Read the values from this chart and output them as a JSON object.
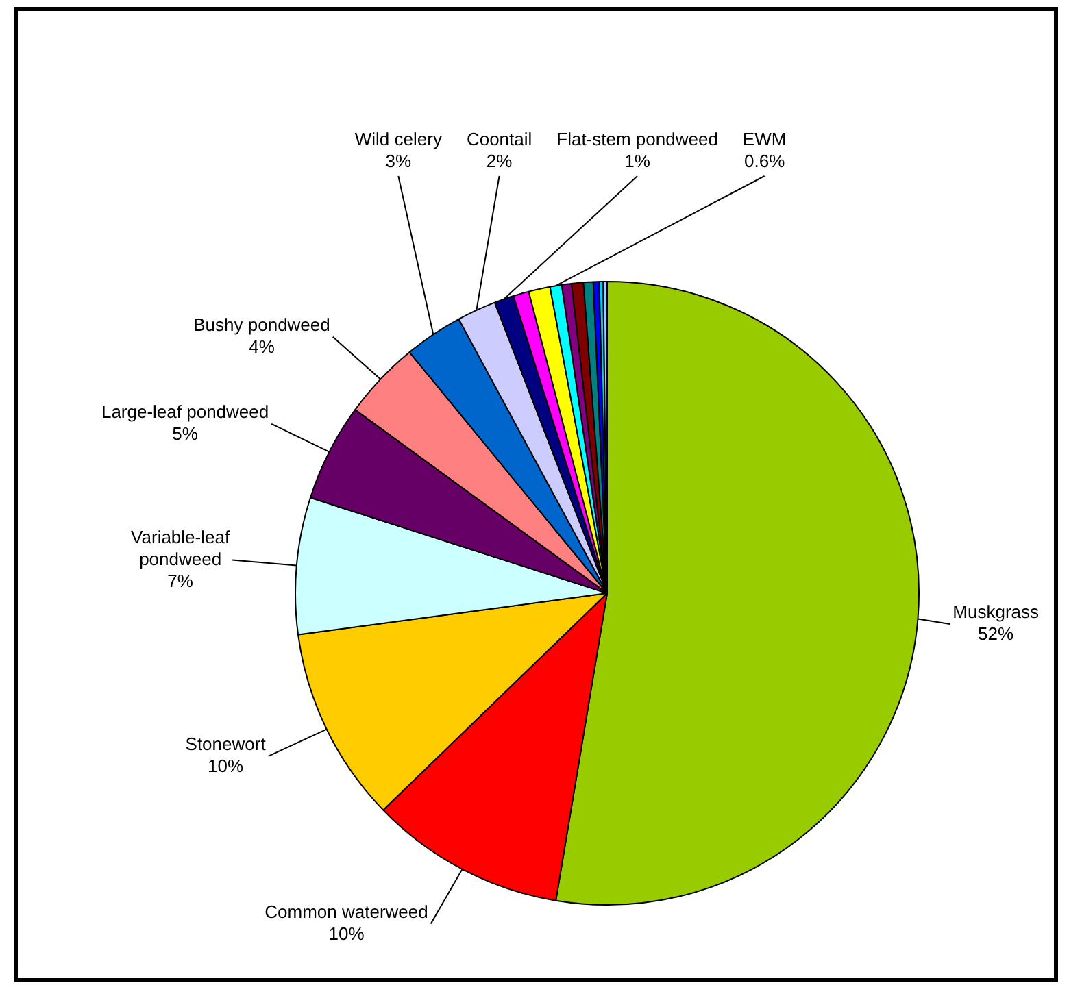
{
  "chart_data": {
    "type": "pie",
    "categories": [
      "Muskgrass",
      "Common waterweed",
      "Stonewort",
      "Variable-leaf pondweed",
      "Large-leaf pondweed",
      "Bushy pondweed",
      "Wild celery",
      "Coontail",
      "Flat-stem pondweed",
      null,
      null,
      "EWM",
      null,
      null,
      null,
      null,
      null,
      null
    ],
    "values": [
      52,
      10,
      10,
      7,
      5,
      4,
      3,
      2,
      1,
      0.8,
      1.1,
      0.6,
      0.5,
      0.6,
      0.5,
      0.3,
      0.2,
      0.2
    ],
    "value_labels": [
      "52%",
      "10%",
      "10%",
      "7%",
      "5%",
      "4%",
      "3%",
      "2%",
      "1%",
      null,
      null,
      "0.6%",
      null,
      null,
      null,
      null,
      null,
      null
    ],
    "colors": [
      "#99cc00",
      "#ff0000",
      "#ffcc00",
      "#ccffff",
      "#660066",
      "#ff8080",
      "#0066cc",
      "#ccccff",
      "#000080",
      "#ff00ff",
      "#ffff00",
      "#00ffff",
      "#800080",
      "#800000",
      "#008080",
      "#0000ff",
      "#00ccff",
      "#99ccff"
    ],
    "legend": false
  }
}
